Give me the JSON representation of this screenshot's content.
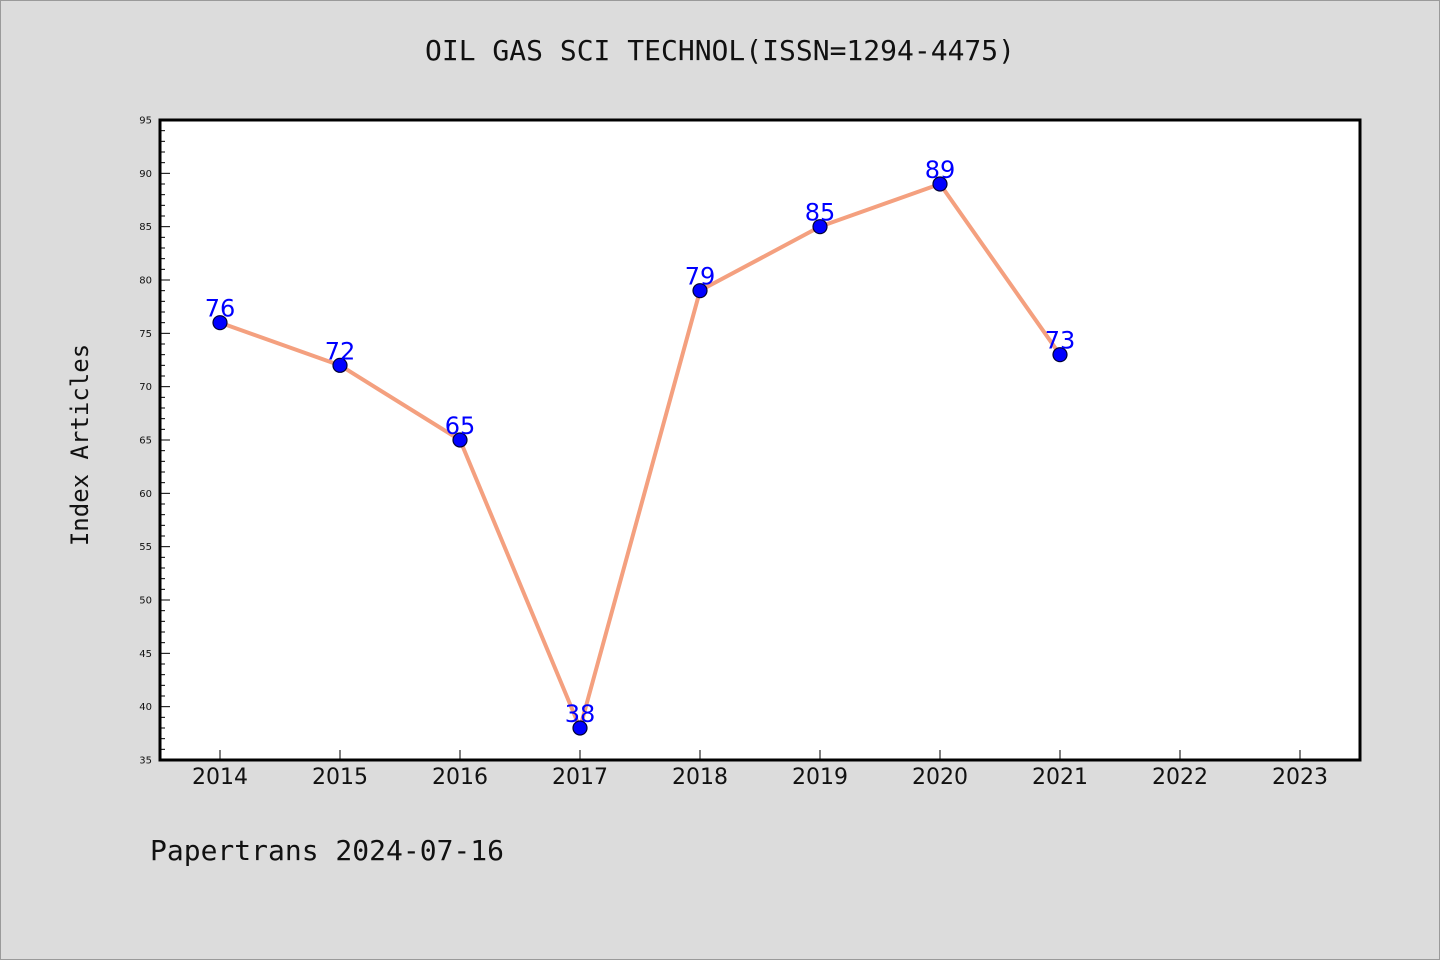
{
  "chart_data": {
    "type": "line",
    "title": "OIL GAS SCI TECHNOL(ISSN=1294-4475)",
    "xlabel": "",
    "ylabel": "Index Articles",
    "categories": [
      "2014",
      "2015",
      "2016",
      "2017",
      "2018",
      "2019",
      "2020",
      "2021",
      "2022",
      "2023"
    ],
    "series": [
      {
        "values": [
          76,
          72,
          65,
          38,
          79,
          85,
          89,
          73,
          null,
          null
        ]
      }
    ],
    "ylim": [
      35,
      95
    ],
    "yticks": [
      35,
      40,
      45,
      50,
      55,
      60,
      65,
      70,
      75,
      80,
      85,
      90,
      95
    ],
    "grid": false,
    "data_labels": true,
    "colors": {
      "line": "#f4a07f",
      "marker": "#0000ff",
      "marker_edge": "#000033",
      "label": "#0000ff",
      "plot_background": "#ffffff",
      "figure_background": "#dcdcdc"
    }
  },
  "footer": "Papertrans 2024-07-16"
}
